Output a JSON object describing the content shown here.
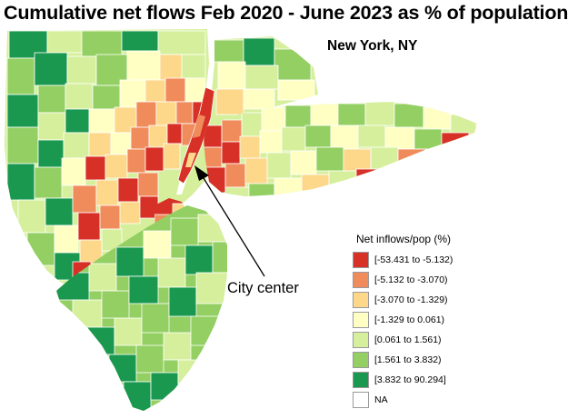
{
  "title": "Cumulative net flows Feb 2020 - June 2023 as % of population",
  "place_label": "New York, NY",
  "annotation": "City center",
  "legend": {
    "title": "Net inflows/pop (%)",
    "items": [
      {
        "label": "[-53.431 to -5.132)",
        "color": "#d73027"
      },
      {
        "label": "[-5.132 to -3.070)",
        "color": "#f08b5c"
      },
      {
        "label": "[-3.070 to -1.329)",
        "color": "#fdd78a"
      },
      {
        "label": "[-1.329 to 0.061)",
        "color": "#ffffc4"
      },
      {
        "label": "[0.061 to 1.561)",
        "color": "#d6ef9c"
      },
      {
        "label": "[1.561 to 3.832)",
        "color": "#93cf62"
      },
      {
        "label": "[3.832 to 90.294]",
        "color": "#1a9850"
      },
      {
        "label": "NA",
        "color": "#ffffff"
      }
    ]
  },
  "map_colors": {
    "red": "#d73027",
    "orange": "#f08b5c",
    "peach": "#fdd78a",
    "cream": "#ffffc4",
    "lightgreen": "#d6ef9c",
    "midgreen": "#93cf62",
    "darkgreen": "#1a9850",
    "boundary": "#ffffff"
  }
}
